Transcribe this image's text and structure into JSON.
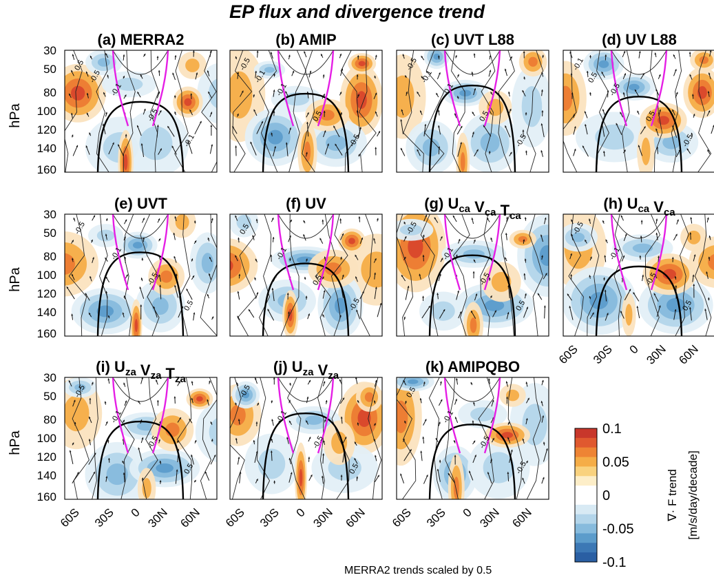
{
  "title": "EP flux and divergence trend",
  "footnote": "MERRA2 trends scaled by 0.5",
  "y_label": "hPa",
  "y_ticks": [
    "30",
    "50",
    "80",
    "100",
    "120",
    "140",
    "160"
  ],
  "x_ticks": [
    "60S",
    "30S",
    "0",
    "30N",
    "60N"
  ],
  "colorbar": {
    "label_line1": "∇· F trend",
    "label_line2": "[m/s/day/decade]",
    "ticks": [
      "0.1",
      "0.05",
      "0",
      "-0.05",
      "-0.1"
    ],
    "colors_top_to_bottom": [
      "#c8372b",
      "#e0592f",
      "#ee8434",
      "#f5ad47",
      "#f9d27e",
      "#fdeec8",
      "#ffffff",
      "#ffffff",
      "#d8eaf4",
      "#b3d5ea",
      "#87bbdd",
      "#5c9ccb",
      "#3c78b5",
      "#2a5fa3"
    ]
  },
  "chart_data": {
    "type": "heatmap",
    "description_units": "contour/vector latitude-pressure cross sections",
    "y_axis": {
      "label": "hPa",
      "ticks": [
        30,
        50,
        80,
        100,
        120,
        140,
        160
      ],
      "range": [
        30,
        160
      ]
    },
    "x_axis": {
      "ticks": [
        "60S",
        "30S",
        "0",
        "30N",
        "60N"
      ],
      "range_deg": [
        -75,
        75
      ]
    },
    "color_scale": {
      "min": -0.1,
      "max": 0.1,
      "units": "m/s/day/decade"
    },
    "panels": [
      {
        "id": "a",
        "title": "(a) MERRA2",
        "contour_labels": [
          "0.5",
          "-0.1",
          "-0.5",
          "-0.1",
          "-0.5"
        ]
      },
      {
        "id": "b",
        "title": "(b) AMIP",
        "contour_labels": [
          "-0.5",
          "-0.1",
          "0.5",
          "-0.5",
          "-0.1"
        ]
      },
      {
        "id": "c",
        "title": "(c) UVT L88",
        "contour_labels": [
          "-0.5",
          "-0.1",
          "0.5",
          "-0.5",
          "-0.1"
        ]
      },
      {
        "id": "d",
        "title": "(d) UV L88",
        "contour_labels": [
          "-0.1",
          "-0.5",
          "0.5",
          "-0.5",
          "0.5"
        ]
      },
      {
        "id": "e",
        "title": "(e) UVT",
        "contour_labels": [
          "-0.5",
          "-0.1",
          "-0.5",
          "0.5"
        ]
      },
      {
        "id": "f",
        "title": "(f) UV",
        "contour_labels": [
          "0.5",
          "-0.1",
          "0.5",
          "-0.5"
        ]
      },
      {
        "id": "g",
        "title": "(g) U_ca V_ca T_ca",
        "contour_labels": [
          "-0.5",
          "-0.1",
          "-0.5",
          "0.5"
        ]
      },
      {
        "id": "h",
        "title": "(h) U_ca V_ca",
        "contour_labels": [
          "-0.5",
          "-0.1",
          "-0.5",
          "0.5"
        ]
      },
      {
        "id": "i",
        "title": "(i) U_za V_za T_za",
        "contour_labels": [
          "-0.5",
          "-0.1",
          "-0.5",
          "0.5"
        ]
      },
      {
        "id": "j",
        "title": "(j) U_za V_za",
        "contour_labels": [
          "-0.5",
          "-0.1",
          "-0.5",
          "0.5"
        ]
      },
      {
        "id": "k",
        "title": "(k) AMIPQBO",
        "contour_labels": [
          "0.5",
          "-0.1",
          "-0.5",
          "-0.5"
        ]
      }
    ]
  }
}
